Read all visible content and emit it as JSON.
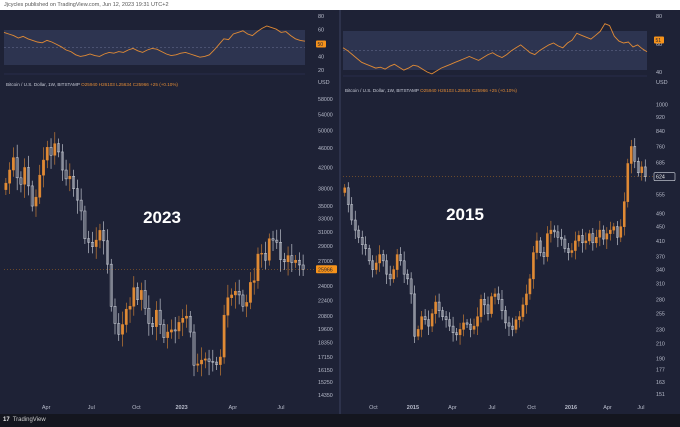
{
  "header": {
    "text": "Jjcycles published on TradingView.com, Jun 12, 2023 19:31 UTC+2"
  },
  "footer": {
    "logo": "17",
    "brand": "TradingView"
  },
  "colors": {
    "background": "#1e2236",
    "up": "#e08a35",
    "down": "#d6dae2",
    "rsi_line": "#e08a35",
    "rsi_band": "#3a4366",
    "price_badge": "#f7931a",
    "grid": "#2c3150"
  },
  "chart_data": [
    {
      "type": "candlestick",
      "title": "2023",
      "symbol_label": "Bitcoin / U.S. Dollar, 1W, BITSTAMP",
      "ohlc_label": {
        "o": "O25940",
        "h": "H26103",
        "l": "L25634",
        "c": "C25966",
        "chg": "+25 (+0.10%)"
      },
      "currency": "USD",
      "price_badge": "25966",
      "rsi_ticks": [
        "80",
        "60",
        "50",
        "40",
        "20"
      ],
      "rsi_badge": "50",
      "rsi": [
        62,
        60,
        58,
        55,
        57,
        54,
        52,
        50,
        49,
        52,
        50,
        47,
        44,
        40,
        38,
        34,
        32,
        33,
        35,
        33,
        32,
        35,
        37,
        36,
        38,
        37,
        40,
        42,
        39,
        37,
        40,
        42,
        41,
        38,
        35,
        33,
        34,
        36,
        37,
        35,
        33,
        31,
        32,
        34,
        40,
        47,
        54,
        53,
        60,
        62,
        64,
        60,
        58,
        63,
        67,
        70,
        68,
        66,
        62,
        63,
        58,
        54,
        52,
        51
      ],
      "y_ticks": [
        "58000",
        "54000",
        "50000",
        "46000",
        "42000",
        "38000",
        "35000",
        "33000",
        "31000",
        "29000",
        "27000",
        "25966",
        "24000",
        "22400",
        "20800",
        "19600",
        "18350",
        "17150",
        "16150",
        "15250",
        "14350"
      ],
      "x_ticks": [
        "Apr",
        "Jul",
        "Oct",
        "2023",
        "Apr",
        "Jul"
      ],
      "close": [
        39000,
        41500,
        44000,
        40000,
        38800,
        42000,
        38500,
        35000,
        36500,
        40500,
        43500,
        46200,
        44500,
        47000,
        45200,
        41500,
        39800,
        40300,
        38000,
        36000,
        34200,
        30000,
        29500,
        28900,
        29800,
        31200,
        29700,
        26600,
        21800,
        20100,
        19100,
        20000,
        21500,
        21800,
        23800,
        22500,
        23500,
        21600,
        20100,
        19800,
        21400,
        20000,
        18800,
        19300,
        19500,
        19400,
        20200,
        20600,
        20800,
        19300,
        16500,
        16600,
        16900,
        17000,
        16800,
        16750,
        16550,
        17150,
        20900,
        22700,
        23000,
        23400,
        23000,
        21800,
        22200,
        24400,
        24600,
        27900,
        28000,
        27100,
        30000,
        29800,
        29500,
        27200,
        26900,
        27700,
        26800,
        27100,
        26500,
        25966
      ]
    },
    {
      "type": "candlestick",
      "title": "2015",
      "symbol_label": "Bitcoin / U.S. Dollar, 1W, BITSTAMP",
      "ohlc_label": {
        "o": "O25940",
        "h": "H26103",
        "l": "L25634",
        "c": "C25966",
        "chg": "+25 (+0.10%)"
      },
      "currency": "USD",
      "price_badge": "624",
      "rsi_ticks": [
        "80",
        "60",
        "40"
      ],
      "rsi_badge": "51",
      "rsi": [
        55,
        52,
        48,
        44,
        40,
        38,
        36,
        34,
        35,
        33,
        36,
        38,
        35,
        32,
        34,
        37,
        36,
        33,
        30,
        28,
        31,
        34,
        36,
        38,
        40,
        42,
        44,
        46,
        44,
        42,
        45,
        48,
        50,
        47,
        45,
        48,
        52,
        55,
        58,
        54,
        50,
        48,
        52,
        55,
        58,
        60,
        57,
        55,
        60,
        63,
        70,
        68,
        66,
        64,
        68,
        72,
        80,
        78,
        67,
        62,
        60,
        61,
        56,
        58,
        54,
        51
      ],
      "y_ticks": [
        "1000",
        "920",
        "840",
        "760",
        "685",
        "624",
        "615",
        "555",
        "490",
        "450",
        "410",
        "370",
        "340",
        "310",
        "280",
        "255",
        "230",
        "210",
        "190",
        "177",
        "163",
        "151"
      ],
      "x_ticks": [
        "Oct",
        "2015",
        "Apr",
        "Jul",
        "Oct",
        "2016",
        "Apr",
        "Jul"
      ],
      "close": [
        580,
        520,
        470,
        440,
        420,
        400,
        390,
        360,
        340,
        355,
        375,
        360,
        330,
        320,
        340,
        375,
        360,
        330,
        320,
        290,
        220,
        230,
        250,
        245,
        235,
        255,
        275,
        260,
        250,
        245,
        235,
        225,
        222,
        230,
        240,
        238,
        230,
        235,
        250,
        280,
        270,
        255,
        285,
        290,
        280,
        260,
        240,
        235,
        230,
        245,
        250,
        270,
        290,
        320,
        380,
        410,
        380,
        370,
        430,
        440,
        435,
        420,
        415,
        390,
        380,
        385,
        410,
        425,
        405,
        410,
        430,
        405,
        420,
        440,
        415,
        430,
        440,
        450,
        420,
        450,
        530,
        680,
        760,
        690,
        640,
        665,
        624
      ]
    }
  ]
}
